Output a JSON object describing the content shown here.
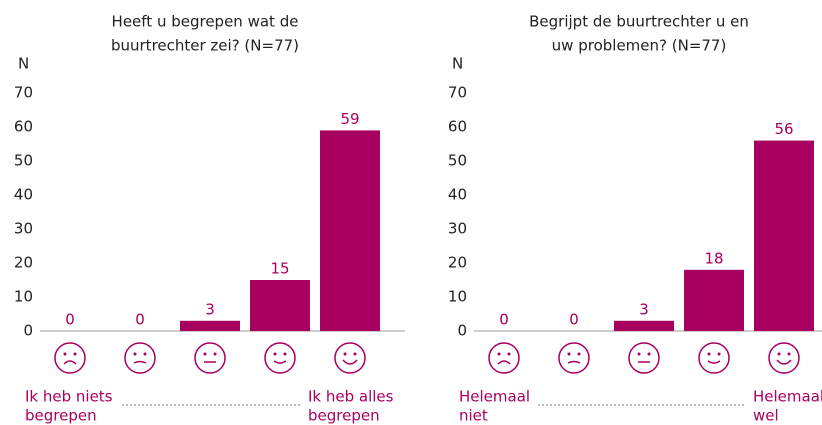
{
  "chart_data": [
    {
      "type": "bar",
      "title": [
        "Heeft u begrepen wat de",
        "buurtrechter zei? (N=77)"
      ],
      "ylabel": "N",
      "categories": [
        null,
        null,
        null,
        null,
        null
      ],
      "values": [
        0,
        0,
        3,
        15,
        59
      ],
      "color": "#a8005e",
      "ylim": [
        0,
        70
      ],
      "yticks": [
        0,
        10,
        20,
        30,
        40,
        50,
        60,
        70
      ],
      "grid": false,
      "low_label": [
        "Ik heb niets",
        "begrepen"
      ],
      "high_label": [
        "Ik heb alles",
        "begrepen"
      ]
    },
    {
      "type": "bar",
      "title": [
        "Begrijpt de buurtrechter u en",
        "uw problemen? (N=77)"
      ],
      "ylabel": "N",
      "categories": [
        null,
        null,
        null,
        null,
        null
      ],
      "values": [
        0,
        0,
        3,
        18,
        56
      ],
      "color": "#a8005e",
      "ylim": [
        0,
        70
      ],
      "yticks": [
        0,
        10,
        20,
        30,
        40,
        50,
        60,
        70
      ],
      "grid": false,
      "low_label": [
        "Helemaal",
        "niet"
      ],
      "high_label": [
        "Helemaal",
        "wel"
      ]
    }
  ]
}
